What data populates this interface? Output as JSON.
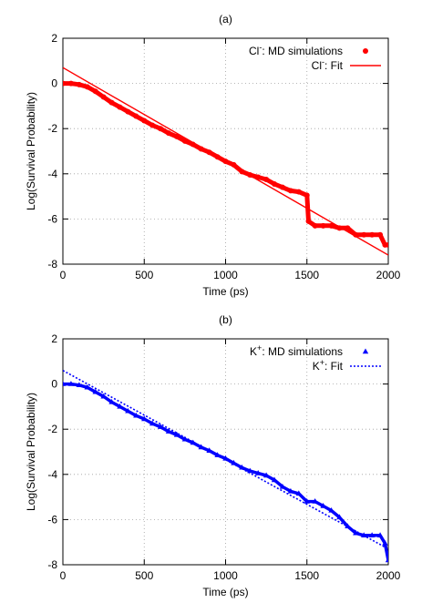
{
  "chart_data": [
    {
      "type": "scatter",
      "title": "(a)",
      "xlabel": "Time (ps)",
      "ylabel": "Log(Survival Probability)",
      "xlim": [
        0,
        2000
      ],
      "ylim": [
        -8,
        2
      ],
      "xticks": [
        "0",
        "500",
        "1000",
        "1500",
        "2000"
      ],
      "yticks": [
        "-8",
        "-6",
        "-4",
        "-2",
        "0",
        "2"
      ],
      "grid": true,
      "legend_position": "top-right",
      "series": [
        {
          "name": "Cl",
          "name_sup": "-",
          "name_suffix": ": MD simulations",
          "kind": "points",
          "marker": "circle",
          "color": "#ff0000",
          "x": [
            0,
            50,
            100,
            150,
            200,
            250,
            300,
            350,
            400,
            450,
            500,
            550,
            600,
            650,
            700,
            750,
            800,
            850,
            900,
            950,
            1000,
            1050,
            1100,
            1150,
            1200,
            1250,
            1300,
            1350,
            1400,
            1450,
            1500,
            1510,
            1550,
            1600,
            1650,
            1700,
            1750,
            1800,
            1850,
            1900,
            1950,
            1980,
            2000
          ],
          "y": [
            0,
            0,
            -0.05,
            -0.15,
            -0.35,
            -0.6,
            -0.85,
            -1.05,
            -1.25,
            -1.45,
            -1.65,
            -1.85,
            -2.0,
            -2.2,
            -2.35,
            -2.55,
            -2.7,
            -2.9,
            -3.05,
            -3.25,
            -3.45,
            -3.6,
            -3.9,
            -4.05,
            -4.15,
            -4.25,
            -4.45,
            -4.6,
            -4.75,
            -4.8,
            -4.95,
            -6.1,
            -6.3,
            -6.3,
            -6.3,
            -6.4,
            -6.4,
            -6.7,
            -6.7,
            -6.7,
            -6.7,
            -7.15,
            -7.15
          ]
        },
        {
          "name": "Cl",
          "name_sup": "-",
          "name_suffix": ": Fit",
          "kind": "line",
          "linestyle": "solid",
          "color": "#ff0000",
          "x": [
            0,
            2000
          ],
          "y": [
            0.7,
            -7.6
          ]
        }
      ]
    },
    {
      "type": "scatter",
      "title": "(b)",
      "xlabel": "Time (ps)",
      "ylabel": "Log(Survival Probability)",
      "xlim": [
        0,
        2000
      ],
      "ylim": [
        -8,
        2
      ],
      "xticks": [
        "0",
        "500",
        "1000",
        "1500",
        "2000"
      ],
      "yticks": [
        "-8",
        "-6",
        "-4",
        "-2",
        "0",
        "2"
      ],
      "grid": true,
      "legend_position": "top-right",
      "series": [
        {
          "name": "K",
          "name_sup": "+",
          "name_suffix": ": MD simulations",
          "kind": "points",
          "marker": "triangle",
          "color": "#0000ff",
          "x": [
            0,
            50,
            100,
            150,
            200,
            250,
            300,
            350,
            400,
            450,
            500,
            550,
            600,
            650,
            700,
            750,
            800,
            850,
            900,
            950,
            1000,
            1050,
            1100,
            1150,
            1200,
            1250,
            1300,
            1350,
            1400,
            1450,
            1500,
            1550,
            1600,
            1650,
            1700,
            1750,
            1800,
            1850,
            1900,
            1950,
            1980,
            2000
          ],
          "y": [
            0,
            0,
            -0.05,
            -0.15,
            -0.35,
            -0.55,
            -0.8,
            -1.0,
            -1.2,
            -1.4,
            -1.55,
            -1.75,
            -1.9,
            -2.1,
            -2.25,
            -2.45,
            -2.6,
            -2.8,
            -2.95,
            -3.15,
            -3.3,
            -3.5,
            -3.7,
            -3.85,
            -3.95,
            -4.05,
            -4.25,
            -4.55,
            -4.75,
            -4.85,
            -5.2,
            -5.2,
            -5.4,
            -5.6,
            -5.9,
            -6.3,
            -6.6,
            -6.7,
            -6.7,
            -6.7,
            -7.05,
            -7.8
          ]
        },
        {
          "name": "K",
          "name_sup": "+",
          "name_suffix": ": Fit",
          "kind": "line",
          "linestyle": "dotted",
          "color": "#0000ff",
          "x": [
            0,
            2000
          ],
          "y": [
            0.6,
            -7.3
          ]
        }
      ]
    }
  ]
}
